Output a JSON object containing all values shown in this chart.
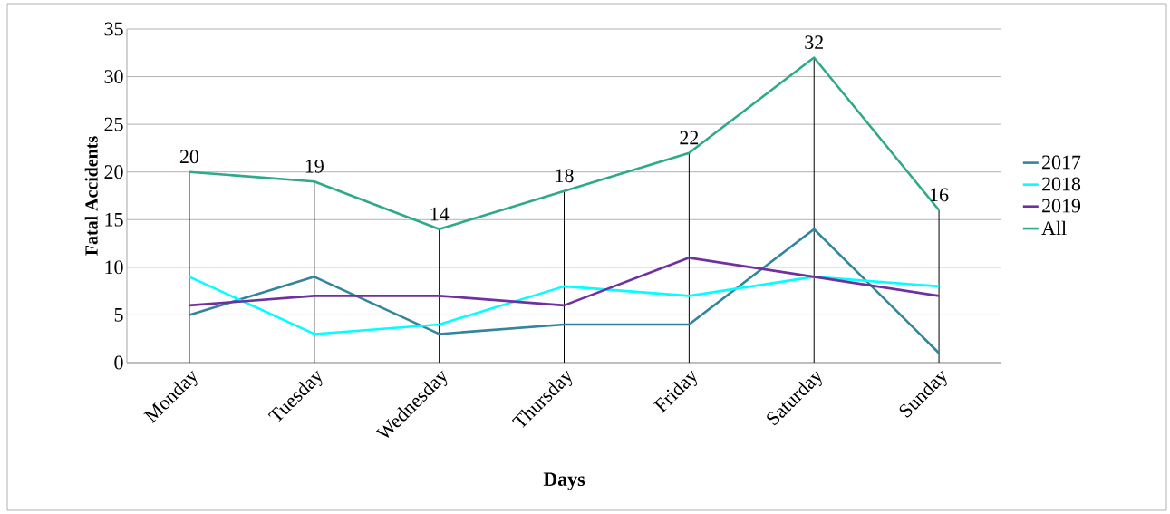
{
  "chart_data": {
    "type": "line",
    "xlabel": "Days",
    "ylabel": "Fatal Accidents",
    "categories": [
      "Monday",
      "Tuesday",
      "Wednesday",
      "Thursday",
      "Friday",
      "Saturday",
      "Sunday"
    ],
    "ylim": [
      0,
      35
    ],
    "yticks": [
      0,
      5,
      10,
      15,
      20,
      25,
      30,
      35
    ],
    "grid": "y",
    "legend": "right",
    "series": [
      {
        "name": "2017",
        "color": "#31859c",
        "values": [
          5,
          9,
          3,
          4,
          4,
          14,
          1
        ]
      },
      {
        "name": "2018",
        "color": "#00ffff",
        "values": [
          9,
          3,
          4,
          8,
          7,
          9,
          8
        ]
      },
      {
        "name": "2019",
        "color": "#7030a0",
        "values": [
          6,
          7,
          7,
          6,
          11,
          9,
          7
        ]
      },
      {
        "name": "All",
        "color": "#2eaa8a",
        "values": [
          20,
          19,
          14,
          18,
          22,
          32,
          16
        ],
        "value_labels": [
          "20",
          "19",
          "14",
          "18",
          "22",
          "32",
          "16"
        ],
        "errors": [
          [
            0,
            20
          ],
          [
            0,
            19
          ],
          [
            0,
            14
          ],
          [
            0,
            18
          ],
          [
            0,
            22
          ],
          [
            0,
            32
          ],
          [
            0,
            16
          ]
        ]
      }
    ]
  }
}
